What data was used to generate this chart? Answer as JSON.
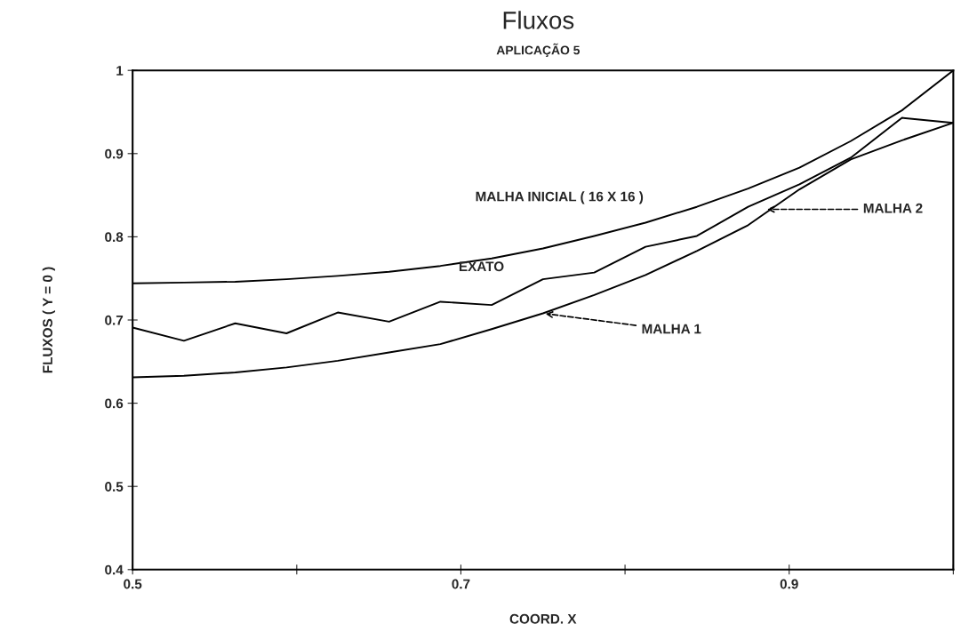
{
  "chart_data": {
    "type": "line",
    "title": "Fluxos",
    "subtitle": "APLICAÇÃO 5",
    "xlabel": "COORD. X",
    "ylabel": "FLUXOS ( Y = 0 )",
    "x": [
      0.5,
      0.53125,
      0.5625,
      0.59375,
      0.625,
      0.65625,
      0.6875,
      0.71875,
      0.75,
      0.78125,
      0.8125,
      0.84375,
      0.875,
      0.90625,
      0.9375,
      0.96875,
      1.0
    ],
    "series": [
      {
        "color": "#000000",
        "values": [
          0.744,
          0.745,
          0.746,
          0.749,
          0.753,
          0.758,
          0.765,
          0.774,
          0.786,
          0.801,
          0.817,
          0.836,
          0.858,
          0.883,
          0.915,
          0.952,
          1.0
        ]
      },
      {
        "color": "#000000",
        "values": [
          0.691,
          0.675,
          0.696,
          0.684,
          0.709,
          0.698,
          0.722,
          0.718,
          0.749,
          0.757,
          0.788,
          0.801,
          0.836,
          0.863,
          0.895,
          0.943,
          0.937
        ]
      },
      {
        "color": "#000000",
        "values": [
          0.631,
          0.633,
          0.637,
          0.643,
          0.651,
          0.661,
          0.671,
          0.689,
          0.708,
          0.73,
          0.754,
          0.783,
          0.814,
          0.857,
          0.893,
          0.916,
          0.937
        ]
      }
    ],
    "annotations": [
      "EXATO",
      "MALHA INICIAL ( 16 X 16 )",
      {
        "text": "MALHA 2",
        "x": 0.885,
        "y": 0.833
      },
      {
        "text": "MALHA 1",
        "x": 0.75,
        "y": 0.708
      }
    ],
    "xlim": [
      0.5,
      1.0
    ],
    "xticks": [
      0.5,
      {
        "value": 0.6,
        "label": null
      },
      0.7,
      {
        "value": 0.8,
        "label": null
      },
      0.9,
      {
        "value": 1.0,
        "label": null
      }
    ],
    "ylim": [
      0.4,
      1
    ],
    "yticks": [
      0.4,
      0.5,
      0.6,
      0.7,
      0.8,
      0.9,
      1
    ],
    "grid": false,
    "legend": false,
    "marker": "none",
    "line_style": "solid"
  }
}
